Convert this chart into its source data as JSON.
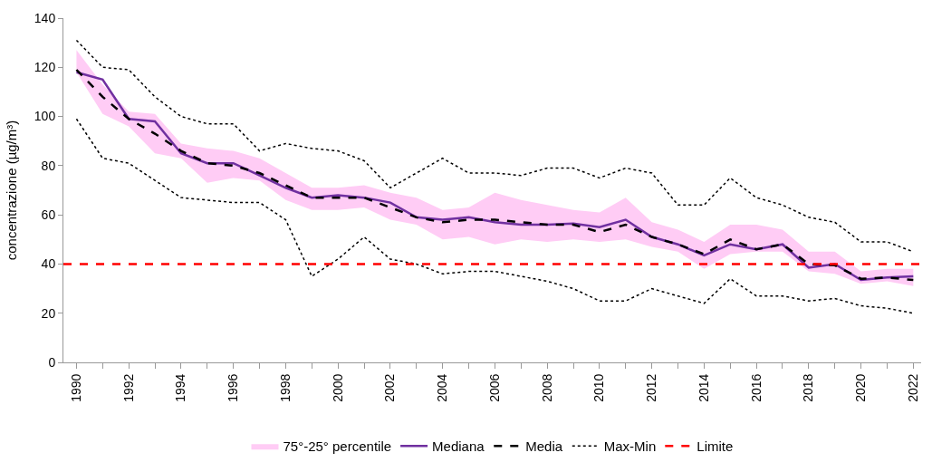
{
  "chart_data": {
    "type": "line",
    "ylabel": "concentrazione (µg/m³)",
    "x": [
      1990,
      1991,
      1992,
      1993,
      1994,
      1995,
      1996,
      1997,
      1998,
      1999,
      2000,
      2001,
      2002,
      2003,
      2004,
      2005,
      2006,
      2007,
      2008,
      2009,
      2010,
      2011,
      2012,
      2013,
      2014,
      2015,
      2016,
      2017,
      2018,
      2019,
      2020,
      2021,
      2022
    ],
    "series": [
      {
        "name": "75°-25° percentile",
        "type": "area",
        "color": "#ffccf5",
        "values": [
          null,
          null,
          null,
          null,
          null,
          null,
          null,
          null,
          null,
          null,
          null,
          null,
          null,
          null,
          null,
          null,
          null,
          null,
          null,
          null,
          null,
          null,
          null,
          null,
          null,
          null,
          null,
          null,
          null,
          null,
          null,
          null,
          null
        ],
        "lower": [
          118,
          101,
          96,
          85,
          83,
          73,
          75,
          74,
          66,
          62,
          62,
          63,
          58,
          56,
          50,
          51,
          48,
          50,
          49,
          50,
          49,
          50,
          47,
          45,
          38,
          44,
          45,
          45,
          37,
          36,
          32,
          33,
          31
        ],
        "upper": [
          127,
          113,
          102,
          101,
          89,
          87,
          86,
          83,
          77,
          71,
          71,
          72,
          69,
          67,
          62,
          63,
          69,
          66,
          64,
          62,
          61,
          67,
          57,
          54,
          49,
          56,
          56,
          54,
          45,
          45,
          37,
          38,
          38
        ]
      },
      {
        "name": "Mediana",
        "color": "#7030a0",
        "line_style": "solid",
        "values": [
          118,
          115,
          99,
          98,
          85,
          81,
          81,
          76,
          71,
          67,
          68,
          67,
          65,
          59,
          58,
          59,
          57,
          56,
          56,
          56.5,
          55,
          58,
          51,
          48,
          43.5,
          48,
          46,
          48,
          38.5,
          40,
          33.5,
          34.5,
          35
        ]
      },
      {
        "name": "Media",
        "color": "#000000",
        "line_style": "dashed",
        "values": [
          119,
          108,
          99,
          93,
          86,
          81,
          80,
          77,
          72,
          67,
          67,
          67,
          63,
          59,
          57,
          58,
          58,
          57,
          56,
          56,
          53,
          56,
          51,
          48,
          44,
          50,
          46,
          48,
          40,
          39.5,
          34,
          34.5,
          33.5
        ]
      },
      {
        "name": "Max-Min",
        "type": "line",
        "color": "#000000",
        "line_style": "dotted",
        "values": [
          131,
          120,
          119,
          108,
          100,
          97,
          97,
          86,
          89,
          87,
          86,
          82,
          71,
          77,
          83,
          77,
          77,
          76,
          79,
          79,
          75,
          79,
          77,
          64,
          64,
          75,
          67,
          64,
          59,
          57,
          49,
          49,
          45
        ]
      },
      {
        "type": "line",
        "color": "#000000",
        "line_style": "dotted",
        "values": [
          99,
          83,
          81,
          74,
          67,
          66,
          65,
          65,
          58,
          35,
          42,
          51,
          42,
          40,
          36,
          37,
          37,
          35,
          33,
          30,
          25,
          25,
          30,
          27,
          24,
          34,
          27,
          27,
          25,
          26,
          23,
          22,
          20
        ]
      }
    ],
    "ref_lines": [
      {
        "axis": "y",
        "value": 40,
        "label": "Limite",
        "color": "#ff0000",
        "line_style": "dashed"
      }
    ],
    "xlim": [
      1989.5,
      2022.3
    ],
    "xticks": [
      1990,
      {
        "value": 1991,
        "label": null
      },
      1992,
      {
        "value": 1993,
        "label": null
      },
      1994,
      {
        "value": 1995,
        "label": null
      },
      1996,
      {
        "value": 1997,
        "label": null
      },
      1998,
      {
        "value": 1999,
        "label": null
      },
      2000,
      {
        "value": 2001,
        "label": null
      },
      2002,
      {
        "value": 2003,
        "label": null
      },
      2004,
      {
        "value": 2005,
        "label": null
      },
      2006,
      {
        "value": 2007,
        "label": null
      },
      2008,
      {
        "value": 2009,
        "label": null
      },
      2010,
      {
        "value": 2011,
        "label": null
      },
      2012,
      {
        "value": 2013,
        "label": null
      },
      2014,
      {
        "value": 2015,
        "label": null
      },
      2016,
      {
        "value": 2017,
        "label": null
      },
      2018,
      {
        "value": 2019,
        "label": null
      },
      2020,
      {
        "value": 2021,
        "label": null
      },
      2022
    ],
    "ylim": [
      0,
      140
    ],
    "yticks": [
      0,
      20,
      40,
      60,
      80,
      100,
      120,
      140
    ],
    "grid": false,
    "legend": "bottom",
    "marker": "none"
  }
}
